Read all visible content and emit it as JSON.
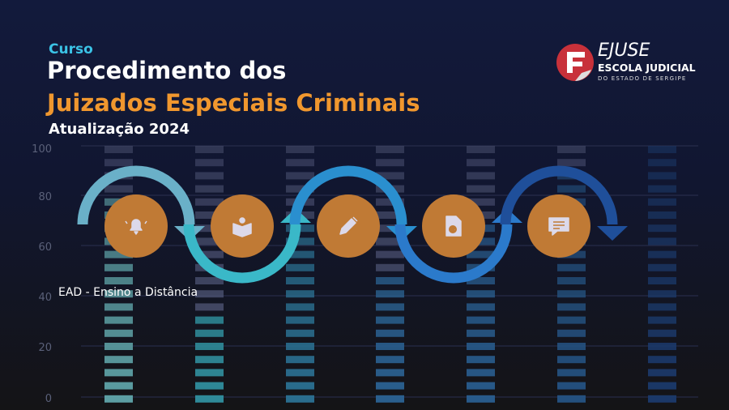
{
  "header": {
    "label": "Curso",
    "title_line1": "Procedimento dos",
    "title_line2": "Juizados Especiais Criminais",
    "subtitle": "Atualização 2024"
  },
  "tagline": "EAD - Ensino a Distância",
  "logo": {
    "name": "EJUSE",
    "line1": "ESCOLA JUDICIAL",
    "line2": "DO ESTADO DE SERGIPE"
  },
  "axis_ticks": [
    "100",
    "80",
    "60",
    "40",
    "20",
    "0"
  ],
  "steps": [
    {
      "icon": "bell-icon"
    },
    {
      "icon": "book-reader-icon"
    },
    {
      "icon": "pencil-icon"
    },
    {
      "icon": "document-search-icon"
    },
    {
      "icon": "chat-message-icon"
    }
  ],
  "colors": {
    "circle": "#c07a35",
    "accent_orange": "#f0972e",
    "accent_cyan": "#3bc3e6",
    "arcs": [
      "#6ab0c8",
      "#3ab8c8",
      "#2a8fcf",
      "#2b7acb",
      "#1f4f9a"
    ]
  }
}
